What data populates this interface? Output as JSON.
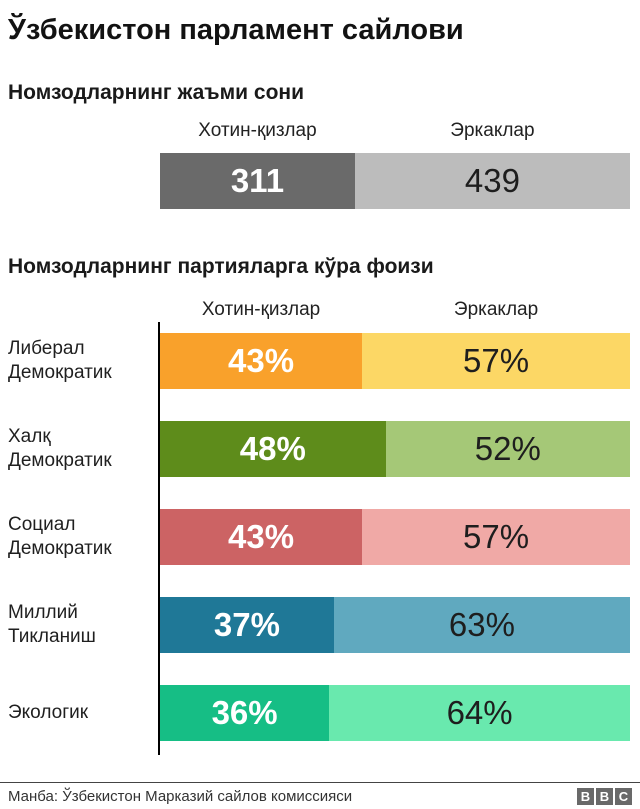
{
  "title": "Ўзбекистон парламент сайлови",
  "totals": {
    "heading": "Номзодларнинг жаъми сони",
    "women_label": "Хотин-қизлар",
    "men_label": "Эркаклар",
    "women": 311,
    "men": 439,
    "women_display": "311",
    "men_display": "439",
    "women_color": "#6a6a6a",
    "men_color": "#bcbcbc"
  },
  "party": {
    "heading": "Номзодларнинг партияларга кўра фоизи",
    "women_label": "Хотин-қизлар",
    "men_label": "Эркаклар",
    "header_flex": {
      "women": 43,
      "men": 57
    },
    "rows": [
      {
        "label_lines": [
          "Либерал",
          "Демократик"
        ],
        "women_pct": 43,
        "men_pct": 57,
        "women_display": "43%",
        "men_display": "57%",
        "women_color": "#f9a12b",
        "men_color": "#fcd765"
      },
      {
        "label_lines": [
          "Халқ",
          "Демократик"
        ],
        "women_pct": 48,
        "men_pct": 52,
        "women_display": "48%",
        "men_display": "52%",
        "women_color": "#5e8c1b",
        "men_color": "#a5c877"
      },
      {
        "label_lines": [
          "Социал",
          "Демократик"
        ],
        "women_pct": 43,
        "men_pct": 57,
        "women_display": "43%",
        "men_display": "57%",
        "women_color": "#cc6364",
        "men_color": "#f0a9a6"
      },
      {
        "label_lines": [
          "Миллий",
          "Тикланиш"
        ],
        "women_pct": 37,
        "men_pct": 63,
        "women_display": "37%",
        "men_display": "63%",
        "women_color": "#1f7897",
        "men_color": "#60a9bf"
      },
      {
        "label_lines": [
          "Экологик"
        ],
        "women_pct": 36,
        "men_pct": 64,
        "women_display": "36%",
        "men_display": "64%",
        "women_color": "#16be85",
        "men_color": "#69e9ae"
      }
    ]
  },
  "footer": {
    "source": "Манба: Ўзбекистон Марказий сайлов комиссияси",
    "logo_letters": [
      "B",
      "B",
      "C"
    ],
    "logo_color": "#696969"
  },
  "chart_data": [
    {
      "type": "bar",
      "subtype": "stacked-horizontal",
      "title": "Номзодларнинг жаъми сони",
      "categories": [
        "Жаъми"
      ],
      "series": [
        {
          "name": "Хотин-қизлар",
          "values": [
            311
          ],
          "color": "#6a6a6a"
        },
        {
          "name": "Эркаклар",
          "values": [
            439
          ],
          "color": "#bcbcbc"
        }
      ],
      "legend_position": "top",
      "grid": false
    },
    {
      "type": "bar",
      "subtype": "stacked-horizontal-percent",
      "title": "Номзодларнинг партияларга кўра фоизи",
      "categories": [
        "Либерал Демократик",
        "Халқ Демократик",
        "Социал Демократик",
        "Миллий Тикланиш",
        "Экологик"
      ],
      "series": [
        {
          "name": "Хотин-қизлар",
          "values": [
            43,
            48,
            43,
            37,
            36
          ],
          "colors": [
            "#f9a12b",
            "#5e8c1b",
            "#cc6364",
            "#1f7897",
            "#16be85"
          ]
        },
        {
          "name": "Эркаклар",
          "values": [
            57,
            52,
            57,
            63,
            64
          ],
          "colors": [
            "#fcd765",
            "#a5c877",
            "#f0a9a6",
            "#60a9bf",
            "#69e9ae"
          ]
        }
      ],
      "xlim": [
        0,
        100
      ],
      "legend_position": "top",
      "grid": false
    }
  ]
}
